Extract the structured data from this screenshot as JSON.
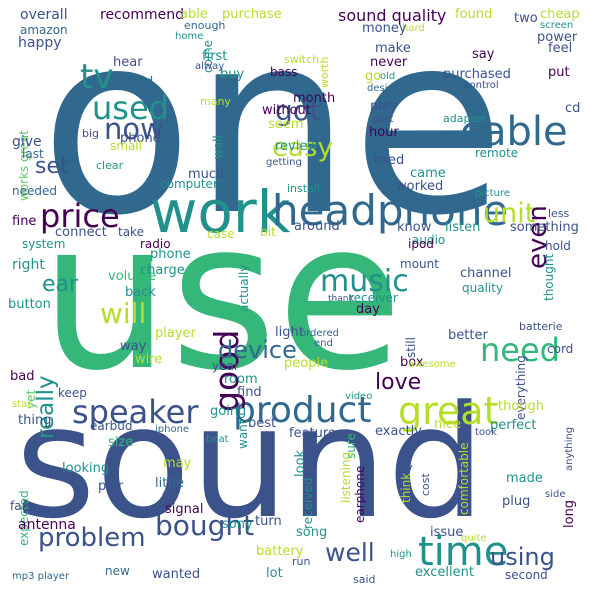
{
  "wordcloud": {
    "colors": {
      "dark_purple": "#440154",
      "indigo": "#3b528b",
      "blue": "#31688e",
      "teal": "#21918c",
      "green": "#35b779",
      "lime": "#5ec962",
      "yellow_green": "#b5de2b",
      "light_green": "#90d743"
    },
    "words": [
      {
        "text": "one",
        "color": "#31688e"
      },
      {
        "text": "use",
        "color": "#35b779"
      },
      {
        "text": "sound",
        "color": "#3b528b"
      },
      {
        "text": "work",
        "color": "#21918c"
      },
      {
        "text": "headphone",
        "color": "#31688e"
      },
      {
        "text": "product",
        "color": "#31688e"
      },
      {
        "text": "speaker",
        "color": "#3b528b"
      },
      {
        "text": "great",
        "color": "#b5de2b"
      },
      {
        "text": "price",
        "color": "#440154"
      },
      {
        "text": "cable",
        "color": "#31688e"
      },
      {
        "text": "time",
        "color": "#21918c"
      },
      {
        "text": "bought",
        "color": "#3b528b"
      },
      {
        "text": "problem",
        "color": "#3b528b"
      },
      {
        "text": "good",
        "color": "#440154"
      },
      {
        "text": "music",
        "color": "#21918c"
      },
      {
        "text": "need",
        "color": "#35b779"
      },
      {
        "text": "tv",
        "color": "#21918c"
      },
      {
        "text": "used",
        "color": "#21918c"
      },
      {
        "text": "now",
        "color": "#3b528b"
      },
      {
        "text": "easy",
        "color": "#b5de2b"
      },
      {
        "text": "got",
        "color": "#3b528b"
      },
      {
        "text": "unit",
        "color": "#b5de2b"
      },
      {
        "text": "even",
        "color": "#440154"
      },
      {
        "text": "will",
        "color": "#b5de2b"
      },
      {
        "text": "device",
        "color": "#31688e"
      },
      {
        "text": "really",
        "color": "#21918c"
      },
      {
        "text": "love",
        "color": "#440154"
      },
      {
        "text": "well",
        "color": "#3b528b"
      },
      {
        "text": "using",
        "color": "#3b528b"
      },
      {
        "text": "set",
        "color": "#3b528b"
      },
      {
        "text": "ear",
        "color": "#21918c"
      },
      {
        "text": "sound quality",
        "color": "#440154"
      },
      {
        "text": "recommend",
        "color": "#440154"
      },
      {
        "text": "overall",
        "color": "#3b528b"
      },
      {
        "text": "amazon",
        "color": "#31688e"
      },
      {
        "text": "happy",
        "color": "#3b528b"
      },
      {
        "text": "works great",
        "color": "#5ec962"
      },
      {
        "text": "give",
        "color": "#3b528b"
      },
      {
        "text": "last",
        "color": "#31688e"
      },
      {
        "text": "needed",
        "color": "#31688e"
      },
      {
        "text": "fine",
        "color": "#440154"
      },
      {
        "text": "system",
        "color": "#21918c"
      },
      {
        "text": "right",
        "color": "#21918c"
      },
      {
        "text": "button",
        "color": "#21918c"
      },
      {
        "text": "bad",
        "color": "#440154"
      },
      {
        "text": "yet",
        "color": "#5ec962"
      },
      {
        "text": "star",
        "color": "#b5de2b"
      },
      {
        "text": "keep",
        "color": "#3b528b"
      },
      {
        "text": "thing",
        "color": "#3b528b"
      },
      {
        "text": "expected",
        "color": "#35b779"
      },
      {
        "text": "far",
        "color": "#3b528b"
      },
      {
        "text": "antenna",
        "color": "#440154"
      },
      {
        "text": "mp3 player",
        "color": "#31688e"
      },
      {
        "text": "able",
        "color": "#b5de2b"
      },
      {
        "text": "enough",
        "color": "#31688e"
      },
      {
        "text": "home",
        "color": "#21918c"
      },
      {
        "text": "hear",
        "color": "#3b528b"
      },
      {
        "text": "read",
        "color": "#31688e"
      },
      {
        "text": "big",
        "color": "#3b528b"
      },
      {
        "text": "phone",
        "color": "#3b528b"
      },
      {
        "text": "small",
        "color": "#b5de2b"
      },
      {
        "text": "clear",
        "color": "#21918c"
      },
      {
        "text": "connect",
        "color": "#3b528b"
      },
      {
        "text": "take",
        "color": "#3b528b"
      },
      {
        "text": "radio",
        "color": "#440154"
      },
      {
        "text": "phone",
        "color": "#21918c"
      },
      {
        "text": "charge",
        "color": "#21918c"
      },
      {
        "text": "volume",
        "color": "#35b779"
      },
      {
        "text": "back",
        "color": "#21918c"
      },
      {
        "text": "player",
        "color": "#b5de2b"
      },
      {
        "text": "way",
        "color": "#3b528b"
      },
      {
        "text": "wire",
        "color": "#b5de2b"
      },
      {
        "text": "earbud",
        "color": "#3b528b"
      },
      {
        "text": "iphone",
        "color": "#31688e"
      },
      {
        "text": "size",
        "color": "#35b779"
      },
      {
        "text": "looking",
        "color": "#21918c"
      },
      {
        "text": "pair",
        "color": "#3b528b"
      },
      {
        "text": "may",
        "color": "#b5de2b"
      },
      {
        "text": "little",
        "color": "#31688e"
      },
      {
        "text": "fit",
        "color": "#3b528b"
      },
      {
        "text": "signal",
        "color": "#440154"
      },
      {
        "text": "new",
        "color": "#31688e"
      },
      {
        "text": "wanted",
        "color": "#3b528b"
      },
      {
        "text": "purchase",
        "color": "#b5de2b"
      },
      {
        "text": "buy",
        "color": "#21918c"
      },
      {
        "text": "come",
        "color": "#21918c"
      },
      {
        "text": "first",
        "color": "#21918c"
      },
      {
        "text": "switch",
        "color": "#b5de2b"
      },
      {
        "text": "alway",
        "color": "#3b528b"
      },
      {
        "text": "many",
        "color": "#b5de2b"
      },
      {
        "text": "bass",
        "color": "#440154"
      },
      {
        "text": "month",
        "color": "#440154"
      },
      {
        "text": "worth",
        "color": "#b5de2b"
      },
      {
        "text": "without",
        "color": "#440154"
      },
      {
        "text": "seem",
        "color": "#b5de2b"
      },
      {
        "text": "getting",
        "color": "#3b528b"
      },
      {
        "text": "much",
        "color": "#3b528b"
      },
      {
        "text": "best",
        "color": "#3b528b"
      },
      {
        "text": "wall",
        "color": "#21918c"
      },
      {
        "text": "review",
        "color": "#21918c"
      },
      {
        "text": "install",
        "color": "#21918c"
      },
      {
        "text": "computer",
        "color": "#21918c"
      },
      {
        "text": "case",
        "color": "#b5de2b"
      },
      {
        "text": "bit",
        "color": "#b5de2b"
      },
      {
        "text": "around",
        "color": "#3b528b"
      },
      {
        "text": "actually",
        "color": "#21918c"
      },
      {
        "text": "light",
        "color": "#3b528b"
      },
      {
        "text": "ordered",
        "color": "#31688e"
      },
      {
        "text": "end",
        "color": "#31688e"
      },
      {
        "text": "year",
        "color": "#3b528b"
      },
      {
        "text": "room",
        "color": "#21918c"
      },
      {
        "text": "find",
        "color": "#3b528b"
      },
      {
        "text": "going",
        "color": "#21918c"
      },
      {
        "text": "people",
        "color": "#b5de2b"
      },
      {
        "text": "video",
        "color": "#21918c"
      },
      {
        "text": "want",
        "color": "#21918c"
      },
      {
        "text": "feature",
        "color": "#3b528b"
      },
      {
        "text": "beat",
        "color": "#21918c"
      },
      {
        "text": "look",
        "color": "#21918c"
      },
      {
        "text": "received",
        "color": "#21918c"
      },
      {
        "text": "turn",
        "color": "#3b528b"
      },
      {
        "text": "sony",
        "color": "#21918c"
      },
      {
        "text": "song",
        "color": "#21918c"
      },
      {
        "text": "battery",
        "color": "#b5de2b"
      },
      {
        "text": "run",
        "color": "#3b528b"
      },
      {
        "text": "lot",
        "color": "#21918c"
      },
      {
        "text": "said",
        "color": "#3b528b"
      },
      {
        "text": "cheap",
        "color": "#b5de2b"
      },
      {
        "text": "screen",
        "color": "#21918c"
      },
      {
        "text": "power",
        "color": "#3b528b"
      },
      {
        "text": "feel",
        "color": "#3b528b"
      },
      {
        "text": "put",
        "color": "#440154"
      },
      {
        "text": "cd",
        "color": "#3b528b"
      },
      {
        "text": "two",
        "color": "#3b528b"
      },
      {
        "text": "found",
        "color": "#b5de2b"
      },
      {
        "text": "hard",
        "color": "#b5de2b"
      },
      {
        "text": "money",
        "color": "#3b528b"
      },
      {
        "text": "make",
        "color": "#3b528b"
      },
      {
        "text": "say",
        "color": "#440154"
      },
      {
        "text": "never",
        "color": "#440154"
      },
      {
        "text": "go",
        "color": "#b5de2b"
      },
      {
        "text": "old",
        "color": "#21918c"
      },
      {
        "text": "design",
        "color": "#31688e"
      },
      {
        "text": "purchased",
        "color": "#3b528b"
      },
      {
        "text": "control",
        "color": "#3b528b"
      },
      {
        "text": "play",
        "color": "#3b528b"
      },
      {
        "text": "part",
        "color": "#3b528b"
      },
      {
        "text": "adapter",
        "color": "#21918c"
      },
      {
        "text": "hour",
        "color": "#440154"
      },
      {
        "text": "remote",
        "color": "#21918c"
      },
      {
        "text": "tried",
        "color": "#3b528b"
      },
      {
        "text": "came",
        "color": "#21918c"
      },
      {
        "text": "worked",
        "color": "#3b528b"
      },
      {
        "text": "picture",
        "color": "#21918c"
      },
      {
        "text": "less",
        "color": "#3b528b"
      },
      {
        "text": "know",
        "color": "#3b528b"
      },
      {
        "text": "listen",
        "color": "#21918c"
      },
      {
        "text": "something",
        "color": "#3b528b"
      },
      {
        "text": "audio",
        "color": "#21918c"
      },
      {
        "text": "ipod",
        "color": "#440154"
      },
      {
        "text": "mount",
        "color": "#3b528b"
      },
      {
        "text": "channel",
        "color": "#3b528b"
      },
      {
        "text": "quality",
        "color": "#21918c"
      },
      {
        "text": "hold",
        "color": "#3b528b"
      },
      {
        "text": "thought",
        "color": "#21918c"
      },
      {
        "text": "receiver",
        "color": "#21918c"
      },
      {
        "text": "thank",
        "color": "#3b528b"
      },
      {
        "text": "day",
        "color": "#440154"
      },
      {
        "text": "better",
        "color": "#3b528b"
      },
      {
        "text": "batterie",
        "color": "#3b528b"
      },
      {
        "text": "cord",
        "color": "#3b528b"
      },
      {
        "text": "still",
        "color": "#3b528b"
      },
      {
        "text": "box",
        "color": "#440154"
      },
      {
        "text": "everything",
        "color": "#3b528b"
      },
      {
        "text": "awesome",
        "color": "#b5de2b"
      },
      {
        "text": "nice",
        "color": "#b5de2b"
      },
      {
        "text": "though",
        "color": "#b5de2b"
      },
      {
        "text": "took",
        "color": "#3b528b"
      },
      {
        "text": "exactly",
        "color": "#3b528b"
      },
      {
        "text": "perfect",
        "color": "#21918c"
      },
      {
        "text": "sure",
        "color": "#35b779"
      },
      {
        "text": "try",
        "color": "#3b528b"
      },
      {
        "text": "made",
        "color": "#21918c"
      },
      {
        "text": "side",
        "color": "#3b528b"
      },
      {
        "text": "anything",
        "color": "#3b528b"
      },
      {
        "text": "listening",
        "color": "#b5de2b"
      },
      {
        "text": "earphone",
        "color": "#440154"
      },
      {
        "text": "think",
        "color": "#b5de2b"
      },
      {
        "text": "cost",
        "color": "#3b528b"
      },
      {
        "text": "comfortable",
        "color": "#b5de2b"
      },
      {
        "text": "plug",
        "color": "#3b528b"
      },
      {
        "text": "long",
        "color": "#440154"
      },
      {
        "text": "issue",
        "color": "#3b528b"
      },
      {
        "text": "high",
        "color": "#21918c"
      },
      {
        "text": "quite",
        "color": "#b5de2b"
      },
      {
        "text": "excellent",
        "color": "#21918c"
      },
      {
        "text": "second",
        "color": "#3b528b"
      }
    ]
  }
}
